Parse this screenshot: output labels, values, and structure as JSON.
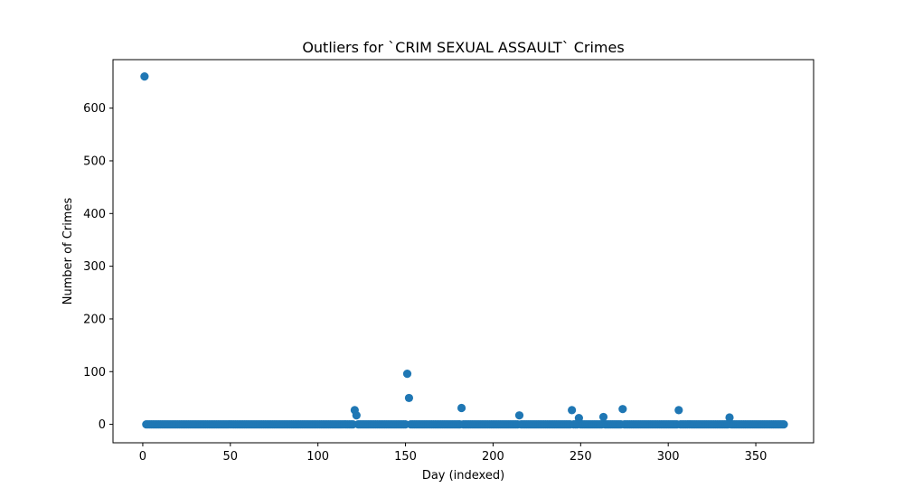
{
  "chart_data": {
    "type": "scatter",
    "title": "Outliers for `CRIM SEXUAL ASSAULT` Crimes",
    "xlabel": "Day (indexed)",
    "ylabel": "Number of Crimes",
    "xlim": [
      -17,
      383
    ],
    "ylim": [
      -35,
      692
    ],
    "xticks": [
      0,
      50,
      100,
      150,
      200,
      250,
      300,
      350
    ],
    "yticks": [
      0,
      100,
      200,
      300,
      400,
      500,
      600
    ],
    "grid": false,
    "legend": "none",
    "color": "#1f77b4",
    "baseline": {
      "x_start": 2,
      "x_end": 366,
      "y": 0
    },
    "outliers": [
      {
        "x": 1,
        "y": 660
      },
      {
        "x": 121,
        "y": 27
      },
      {
        "x": 122,
        "y": 17
      },
      {
        "x": 151,
        "y": 96
      },
      {
        "x": 152,
        "y": 50
      },
      {
        "x": 182,
        "y": 31
      },
      {
        "x": 215,
        "y": 17
      },
      {
        "x": 245,
        "y": 27
      },
      {
        "x": 249,
        "y": 12
      },
      {
        "x": 263,
        "y": 14
      },
      {
        "x": 274,
        "y": 29
      },
      {
        "x": 306,
        "y": 27
      },
      {
        "x": 335,
        "y": 13
      }
    ]
  }
}
